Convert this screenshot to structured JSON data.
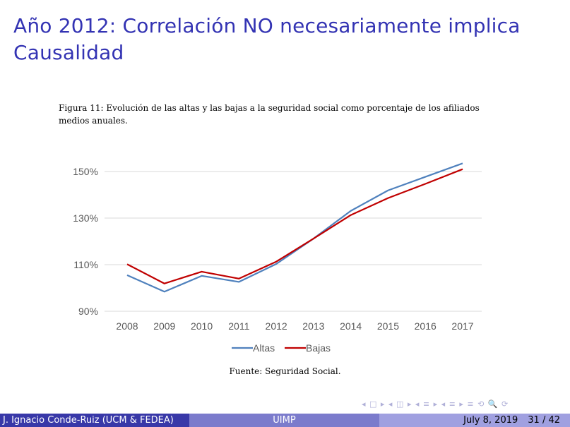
{
  "slide": {
    "title": "Año 2012: Correlación NO necesariamente implica Causalidad",
    "caption": "Figura 11: Evolución de las altas y las bajas a la seguridad social como porcentaje de los afiliados medios anuales.",
    "source": "Fuente: Seguridad Social."
  },
  "nav_symbols": "◂ □ ▸ ◂ ◫ ▸ ◂ ≡ ▸ ◂ ≡ ▸   ≡   ⟲ 🔍 ⟳",
  "footer": {
    "author": "J. Ignacio Conde-Ruiz (UCM & FEDEA)",
    "institute": "UIMP",
    "date": "July 8, 2019",
    "page": "31 / 42"
  },
  "chart_data": {
    "type": "line",
    "categories": [
      "2008",
      "2009",
      "2010",
      "2011",
      "2012",
      "2013",
      "2014",
      "2015",
      "2016",
      "2017"
    ],
    "yticks": [
      "90%",
      "110%",
      "130%",
      "150%"
    ],
    "ylim": [
      90,
      150
    ],
    "grid": true,
    "legend_position": "bottom",
    "series": [
      {
        "name": "Altas",
        "color": "#4f81bd",
        "values": [
          105.5,
          98.4,
          105.2,
          102.6,
          110.3,
          121.2,
          133.1,
          141.9,
          147.7,
          153.5
        ]
      },
      {
        "name": "Bajas",
        "color": "#c00000",
        "values": [
          110.2,
          101.9,
          107.0,
          104.0,
          111.3,
          121.2,
          131.3,
          138.6,
          144.7,
          151.0
        ]
      }
    ]
  }
}
